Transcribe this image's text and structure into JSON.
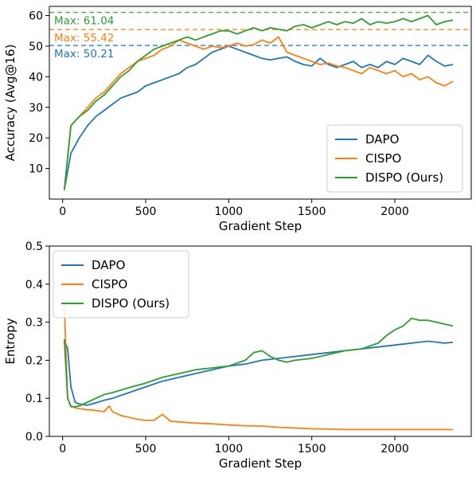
{
  "chart_data": [
    {
      "type": "line",
      "xlabel": "Gradient Step",
      "ylabel": "Accuracy (Avg@16)",
      "xlim": [
        -80,
        2460
      ],
      "ylim": [
        0,
        63
      ],
      "xticks": [
        0,
        500,
        1000,
        1500,
        2000
      ],
      "yticks": [
        10,
        20,
        30,
        40,
        50,
        60
      ],
      "legend_position": "lower-right",
      "grid": false,
      "series": [
        {
          "name": "DAPO",
          "color": "#1f77b4",
          "x": [
            10,
            50,
            100,
            150,
            200,
            250,
            300,
            350,
            400,
            450,
            500,
            550,
            600,
            650,
            700,
            750,
            800,
            850,
            900,
            950,
            1000,
            1050,
            1100,
            1150,
            1200,
            1250,
            1300,
            1350,
            1400,
            1450,
            1500,
            1550,
            1600,
            1650,
            1700,
            1750,
            1800,
            1850,
            1900,
            1950,
            2000,
            2050,
            2100,
            2150,
            2200,
            2250,
            2300,
            2350
          ],
          "y": [
            3,
            15,
            20,
            24,
            27,
            29,
            31,
            33,
            34,
            35,
            37,
            38,
            39,
            40,
            41,
            43,
            44,
            46,
            48,
            49,
            50,
            49,
            48,
            47,
            46,
            45.5,
            46,
            46.5,
            45,
            44,
            43.5,
            46,
            44,
            43,
            44,
            45,
            43,
            44,
            43,
            45,
            44,
            46,
            45,
            44,
            47,
            45,
            43.5,
            44
          ]
        },
        {
          "name": "CISPO",
          "color": "#ff7f0e",
          "x": [
            10,
            50,
            100,
            150,
            200,
            250,
            300,
            350,
            400,
            450,
            500,
            550,
            600,
            650,
            700,
            750,
            800,
            850,
            900,
            950,
            1000,
            1050,
            1100,
            1150,
            1200,
            1250,
            1300,
            1350,
            1400,
            1450,
            1500,
            1550,
            1600,
            1650,
            1700,
            1750,
            1800,
            1850,
            1900,
            1950,
            2000,
            2050,
            2100,
            2150,
            2200,
            2250,
            2300,
            2350
          ],
          "y": [
            3,
            24,
            27,
            30,
            33,
            35,
            38,
            41,
            43,
            45,
            46,
            47,
            49,
            50,
            52,
            51,
            50,
            49,
            50,
            49.5,
            50,
            51,
            50,
            50.5,
            52,
            51,
            53,
            48,
            47,
            46,
            45,
            44,
            44.5,
            43.5,
            43,
            42,
            41,
            43,
            42,
            41,
            42,
            40,
            41,
            39,
            40,
            38,
            37,
            38.5
          ]
        },
        {
          "name": "DISPO (Ours)",
          "color": "#2ca02c",
          "x": [
            10,
            50,
            100,
            150,
            200,
            250,
            300,
            350,
            400,
            450,
            500,
            550,
            600,
            650,
            700,
            750,
            800,
            850,
            900,
            950,
            1000,
            1050,
            1100,
            1150,
            1200,
            1250,
            1300,
            1350,
            1400,
            1450,
            1500,
            1550,
            1600,
            1650,
            1700,
            1750,
            1800,
            1850,
            1900,
            1950,
            2000,
            2050,
            2100,
            2150,
            2200,
            2250,
            2300,
            2350
          ],
          "y": [
            3,
            24,
            27,
            29,
            32,
            34,
            37,
            40,
            42,
            45,
            47,
            49,
            50,
            51,
            52,
            53,
            52,
            53,
            54,
            55,
            55,
            54,
            55,
            56,
            55,
            56,
            55.5,
            55,
            56.5,
            57,
            56,
            57,
            58,
            57,
            58,
            57.5,
            59,
            57,
            58,
            57.5,
            58,
            59,
            58,
            59,
            60,
            57,
            58,
            58.5
          ]
        }
      ],
      "annotations": [
        {
          "text": "Max: 61.04",
          "value": 61.04,
          "color": "#2ca02c"
        },
        {
          "text": "Max: 55.42",
          "value": 55.42,
          "color": "#ff7f0e"
        },
        {
          "text": "Max: 50.21",
          "value": 50.21,
          "color": "#1f77b4"
        }
      ]
    },
    {
      "type": "line",
      "xlabel": "Gradient Step",
      "ylabel": "Entropy",
      "xlim": [
        -80,
        2460
      ],
      "ylim": [
        0,
        0.5
      ],
      "xticks": [
        0,
        500,
        1000,
        1500,
        2000
      ],
      "yticks": [
        0.0,
        0.1,
        0.2,
        0.3,
        0.4,
        0.5
      ],
      "ytick_labels": [
        "0.0",
        "0.1",
        "0.2",
        "0.3",
        "0.4",
        "0.5"
      ],
      "legend_position": "upper-left",
      "grid": false,
      "series": [
        {
          "name": "DAPO",
          "color": "#1f77b4",
          "x": [
            10,
            30,
            50,
            75,
            100,
            150,
            200,
            250,
            300,
            400,
            500,
            600,
            700,
            800,
            900,
            1000,
            1100,
            1200,
            1300,
            1400,
            1500,
            1600,
            1700,
            1800,
            1900,
            2000,
            2100,
            2200,
            2300,
            2350
          ],
          "y": [
            0.255,
            0.23,
            0.13,
            0.09,
            0.085,
            0.082,
            0.088,
            0.095,
            0.1,
            0.115,
            0.13,
            0.145,
            0.155,
            0.165,
            0.175,
            0.185,
            0.19,
            0.2,
            0.205,
            0.21,
            0.215,
            0.22,
            0.225,
            0.23,
            0.235,
            0.24,
            0.245,
            0.25,
            0.245,
            0.247
          ]
        },
        {
          "name": "CISPO",
          "color": "#ff7f0e",
          "x": [
            10,
            30,
            50,
            75,
            100,
            150,
            200,
            250,
            280,
            300,
            350,
            400,
            450,
            500,
            550,
            600,
            650,
            700,
            800,
            900,
            1000,
            1100,
            1200,
            1300,
            1400,
            1500,
            1600,
            1700,
            1800,
            1900,
            2000,
            2100,
            2200,
            2300,
            2350
          ],
          "y": [
            0.34,
            0.1,
            0.08,
            0.075,
            0.073,
            0.07,
            0.068,
            0.065,
            0.08,
            0.065,
            0.055,
            0.05,
            0.045,
            0.042,
            0.042,
            0.058,
            0.04,
            0.038,
            0.035,
            0.033,
            0.03,
            0.028,
            0.027,
            0.024,
            0.022,
            0.02,
            0.019,
            0.018,
            0.018,
            0.018,
            0.018,
            0.018,
            0.018,
            0.018,
            0.018
          ]
        },
        {
          "name": "DISPO (Ours)",
          "color": "#2ca02c",
          "x": [
            10,
            30,
            50,
            75,
            100,
            150,
            200,
            250,
            300,
            400,
            500,
            600,
            700,
            800,
            900,
            1000,
            1100,
            1150,
            1200,
            1250,
            1300,
            1350,
            1400,
            1500,
            1600,
            1700,
            1800,
            1900,
            1950,
            2000,
            2050,
            2100,
            2150,
            2200,
            2250,
            2300,
            2350
          ],
          "y": [
            0.255,
            0.1,
            0.078,
            0.078,
            0.08,
            0.09,
            0.1,
            0.11,
            0.115,
            0.128,
            0.14,
            0.155,
            0.165,
            0.175,
            0.18,
            0.185,
            0.2,
            0.22,
            0.225,
            0.21,
            0.2,
            0.195,
            0.2,
            0.205,
            0.215,
            0.225,
            0.23,
            0.245,
            0.265,
            0.28,
            0.29,
            0.31,
            0.305,
            0.305,
            0.3,
            0.295,
            0.29
          ]
        }
      ]
    }
  ]
}
